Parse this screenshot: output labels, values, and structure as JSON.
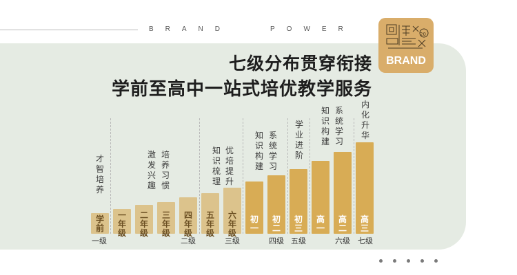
{
  "header": {
    "brand_left": "BRAND",
    "brand_right": "POWER",
    "logo_word": "BRAND",
    "logo_small": "20",
    "title_line1": "七级分布贯穿衔接",
    "title_line2": "学前至高中一站式培优教学服务"
  },
  "bars": [
    {
      "label": "学前",
      "value": 1
    },
    {
      "label": "一年级",
      "value": 2
    },
    {
      "label": "二年级",
      "value": 3
    },
    {
      "label": "三年级",
      "value": 4
    },
    {
      "label": "四年级",
      "value": 5
    },
    {
      "label": "五年级",
      "value": 6
    },
    {
      "label": "六年级",
      "value": 7
    },
    {
      "label": "初一",
      "value": 8
    },
    {
      "label": "初二",
      "value": 9
    },
    {
      "label": "初三",
      "value": 10
    },
    {
      "label": "高一",
      "value": 11
    },
    {
      "label": "高二",
      "value": 12
    },
    {
      "label": "高三",
      "value": 13
    }
  ],
  "stage_texts": [
    "才智培养",
    "激发兴趣",
    "培养习惯",
    "知识梳理",
    "优培提升",
    "知识构建",
    "系统学习",
    "学业进阶",
    "知识构建",
    "系统学习",
    "内化升华"
  ],
  "levels": [
    "一级",
    "二级",
    "三级",
    "四级",
    "五级",
    "六级",
    "七级"
  ],
  "colors": {
    "panel": "#e5ebe3",
    "accent": "#d9ad6a",
    "bar_light": "#dcc38c",
    "bar_dark": "#d8ac55",
    "label_dark": "#6b4f22"
  },
  "pagination_dots": 5
}
